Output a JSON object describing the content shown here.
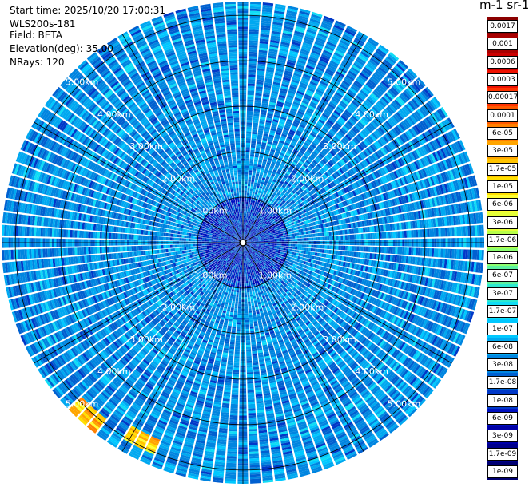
{
  "info": {
    "start_time": "Start time: 2025/10/20 17:00:31",
    "station": "WLS200s-181",
    "field": "Field: BETA",
    "elevation": "Elevation(deg): 35.00",
    "nrays": "NRays: 120"
  },
  "colorbar": {
    "title": "m-1 sr-1",
    "labels": [
      "0.0017",
      "0.001",
      "0.0006",
      "0.0003",
      "0.00017",
      "0.0001",
      "6e-05",
      "3e-05",
      "1.7e-05",
      "1e-05",
      "6e-06",
      "3e-06",
      "1.7e-06",
      "1e-06",
      "6e-07",
      "3e-07",
      "1.7e-07",
      "1e-07",
      "6e-08",
      "3e-08",
      "1.7e-08",
      "1e-08",
      "6e-09",
      "3e-09",
      "1.7e-09",
      "1e-09"
    ],
    "colors": [
      "#8b0000",
      "#a80000",
      "#cc0000",
      "#ee1100",
      "#ff3300",
      "#ff5a00",
      "#ff8000",
      "#ffa500",
      "#ffc400",
      "#ffe000",
      "#ffff33",
      "#e4ff38",
      "#b8ff48",
      "#8cff70",
      "#5cf0a0",
      "#2de8d0",
      "#10ddf5",
      "#00c8ff",
      "#00a8f0",
      "#0085e0",
      "#0060d0",
      "#0038c8",
      "#0010c0",
      "#0000a8",
      "#00008a",
      "#000070"
    ]
  },
  "chart_data": {
    "type": "heatmap",
    "projection": "polar (PPI scan)",
    "field": "BETA",
    "units": "m-1 sr-1",
    "scale": "log",
    "elevation_deg": 35.0,
    "n_rays": 120,
    "range_rings_km": [
      1,
      2,
      3,
      4,
      5
    ],
    "ring_labels": [
      "1.00km",
      "2.00km",
      "3.00km",
      "4.00km",
      "5.00km"
    ],
    "max_range_km": 5.3,
    "dominant_value_range": [
      3e-08,
      1.7e-07
    ],
    "near_range_value_range": [
      3e-09,
      1e-08
    ],
    "hotspots": [
      {
        "azimuth_deg": 223,
        "range_km_start": 4.9,
        "range_km_end": 5.3,
        "value_range": [
          1.7e-06,
          1e-05
        ]
      },
      {
        "azimuth_deg": 208,
        "range_km_start": 4.7,
        "range_km_end": 5.0,
        "value_range": [
          1e-06,
          1e-05
        ]
      }
    ]
  }
}
